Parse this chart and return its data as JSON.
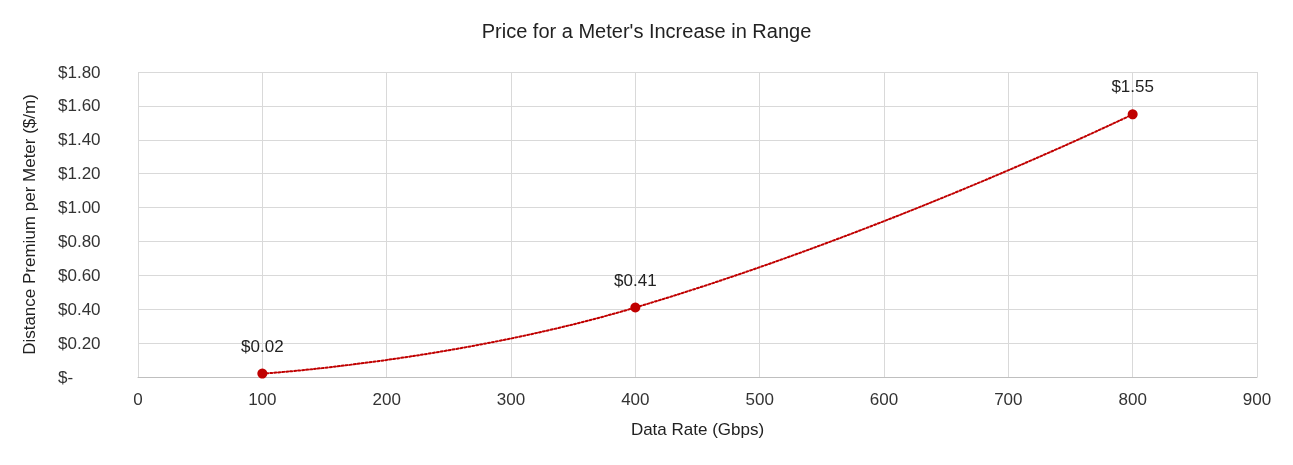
{
  "chart_data": {
    "type": "line",
    "title": "Price for a Meter's Increase in Range",
    "xlabel": "Data Rate (Gbps)",
    "ylabel": "Distance Premium per Meter ($/m)",
    "x": [
      100,
      400,
      800
    ],
    "series": [
      {
        "color": "#c00000",
        "values": [
          0.02,
          0.41,
          1.55
        ],
        "value_labels": [
          "$0.02",
          "$0.41",
          "$1.55"
        ]
      }
    ],
    "xlim": [
      0,
      900
    ],
    "xticks": [
      0,
      100,
      200,
      300,
      400,
      500,
      600,
      700,
      800,
      900
    ],
    "ylim": [
      0,
      1.8
    ],
    "yticks": [
      {
        "value": 0,
        "label": "$-"
      },
      {
        "value": 0.2,
        "label": "$0.20"
      },
      {
        "value": 0.4,
        "label": "$0.40"
      },
      {
        "value": 0.6,
        "label": "$0.60"
      },
      {
        "value": 0.8,
        "label": "$0.80"
      },
      {
        "value": 1,
        "label": "$1.00"
      },
      {
        "value": 1.2,
        "label": "$1.20"
      },
      {
        "value": 1.4,
        "label": "$1.40"
      },
      {
        "value": 1.6,
        "label": "$1.60"
      },
      {
        "value": 1.8,
        "label": "$1.80"
      }
    ],
    "grid": true,
    "marker": "circle",
    "line_style": "dotted"
  }
}
